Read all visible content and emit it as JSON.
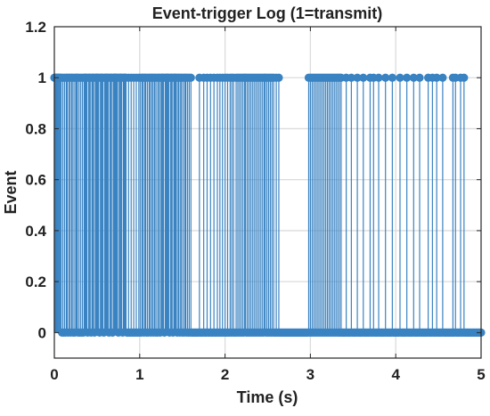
{
  "chart_data": {
    "type": "stem",
    "title": "Event-trigger Log (1=transmit)",
    "xlabel": "Time (s)",
    "ylabel": "Event",
    "xlim": [
      0,
      5
    ],
    "ylim": [
      -0.1,
      1.2
    ],
    "xticks": [
      0,
      1,
      2,
      3,
      4,
      5
    ],
    "xtick_labels": [
      "0",
      "1",
      "2",
      "3",
      "4",
      "5"
    ],
    "yticks": [
      0,
      0.2,
      0.4,
      0.6,
      0.8,
      1,
      1.2
    ],
    "ytick_labels": [
      "0",
      "0.2",
      "0.4",
      "0.6",
      "0.8",
      "1",
      "1.2"
    ],
    "grid": true,
    "sample_interval": 0.01,
    "series": [
      {
        "color": "#3a83c2",
        "transmit_times": [
          0.0,
          0.01,
          0.02,
          0.03,
          0.04,
          0.05,
          0.06,
          0.07,
          0.08,
          0.1,
          0.12,
          0.14,
          0.15,
          0.17,
          0.18,
          0.2,
          0.21,
          0.23,
          0.25,
          0.26,
          0.27,
          0.29,
          0.31,
          0.33,
          0.35,
          0.36,
          0.37,
          0.38,
          0.4,
          0.41,
          0.42,
          0.44,
          0.45,
          0.46,
          0.48,
          0.49,
          0.5,
          0.51,
          0.52,
          0.54,
          0.55,
          0.56,
          0.57,
          0.59,
          0.6,
          0.61,
          0.62,
          0.63,
          0.65,
          0.66,
          0.67,
          0.69,
          0.7,
          0.71,
          0.72,
          0.73,
          0.74,
          0.76,
          0.77,
          0.78,
          0.79,
          0.81,
          0.82,
          0.83,
          0.84,
          0.87,
          0.9,
          0.93,
          0.96,
          0.99,
          1.01,
          1.03,
          1.04,
          1.06,
          1.07,
          1.09,
          1.11,
          1.12,
          1.14,
          1.15,
          1.17,
          1.18,
          1.2,
          1.22,
          1.23,
          1.25,
          1.26,
          1.27,
          1.28,
          1.3,
          1.31,
          1.32,
          1.33,
          1.34,
          1.36,
          1.37,
          1.38,
          1.4,
          1.41,
          1.42,
          1.43,
          1.45,
          1.46,
          1.48,
          1.49,
          1.51,
          1.53,
          1.54,
          1.56,
          1.58,
          1.6,
          1.7,
          1.75,
          1.79,
          1.83,
          1.87,
          1.91,
          1.94,
          1.97,
          2.0,
          2.03,
          2.06,
          2.08,
          2.1,
          2.13,
          2.15,
          2.17,
          2.19,
          2.21,
          2.23,
          2.24,
          2.26,
          2.28,
          2.3,
          2.32,
          2.34,
          2.36,
          2.38,
          2.4,
          2.42,
          2.44,
          2.46,
          2.47,
          2.49,
          2.51,
          2.53,
          2.55,
          2.57,
          2.6,
          2.63,
          2.98,
          3.0,
          3.02,
          3.04,
          3.06,
          3.08,
          3.1,
          3.12,
          3.14,
          3.16,
          3.18,
          3.2,
          3.22,
          3.24,
          3.26,
          3.28,
          3.3,
          3.32,
          3.34,
          3.36,
          3.42,
          3.48,
          3.55,
          3.62,
          3.7,
          3.74,
          3.8,
          3.88,
          3.96,
          4.05,
          4.13,
          4.21,
          4.28,
          4.38,
          4.43,
          4.48,
          4.55,
          4.67,
          4.7,
          4.76,
          4.8
        ]
      }
    ]
  }
}
